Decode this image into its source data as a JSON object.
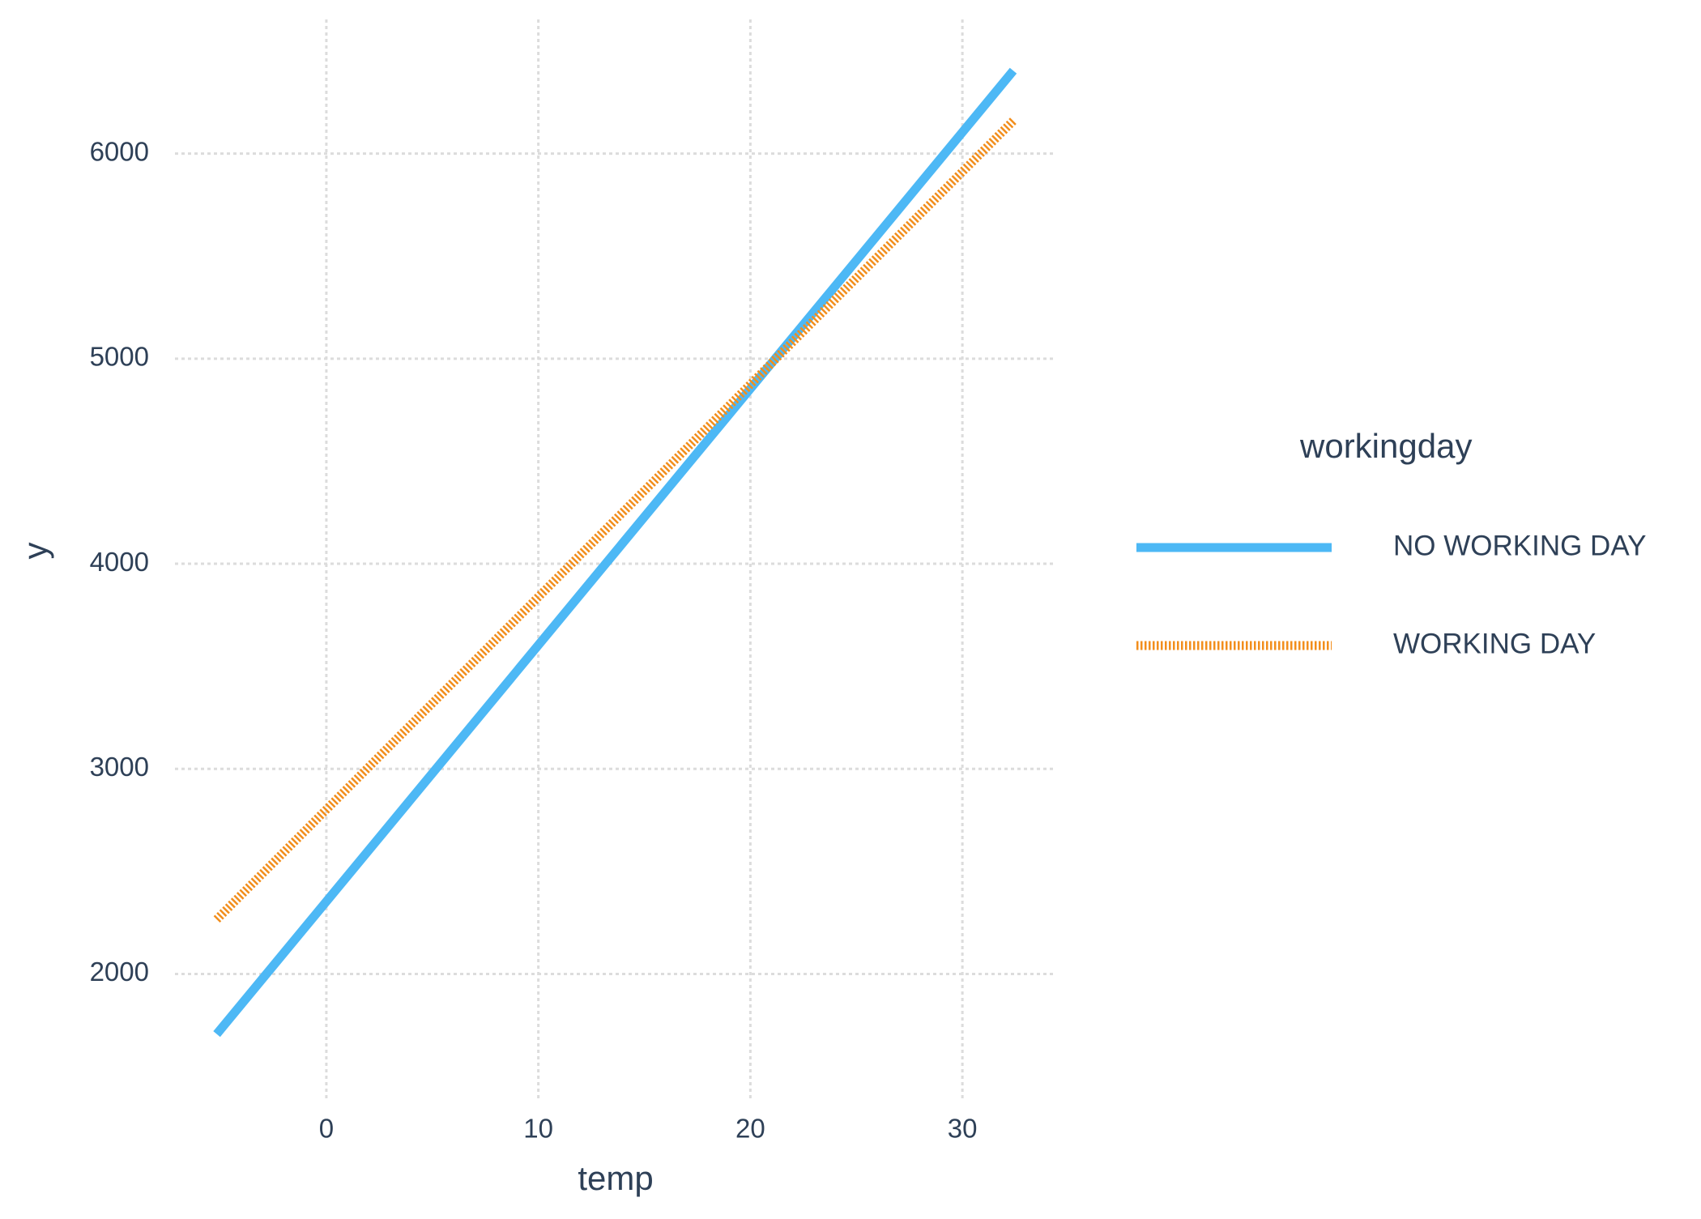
{
  "chart_data": {
    "type": "line",
    "title_x": "temp",
    "title_y": "y",
    "x": [
      -5.17,
      32.4
    ],
    "series": [
      {
        "name": "NO WORKING DAY",
        "color": "#4db8f5",
        "linetype": "solid",
        "values": [
          1707,
          6404
        ]
      },
      {
        "name": "WORKING DAY",
        "color": "#f28e1c",
        "linetype": "dotted",
        "values": [
          2266,
          6160
        ]
      }
    ],
    "xlim": [
      -7.14,
      34.35
    ],
    "ylim": [
      1378,
      6654
    ],
    "xticks": [
      0,
      10,
      20,
      30
    ],
    "yticks": [
      2000,
      3000,
      4000,
      5000,
      6000
    ],
    "grid": true,
    "legend_title": "workingday",
    "legend_position": "right"
  }
}
